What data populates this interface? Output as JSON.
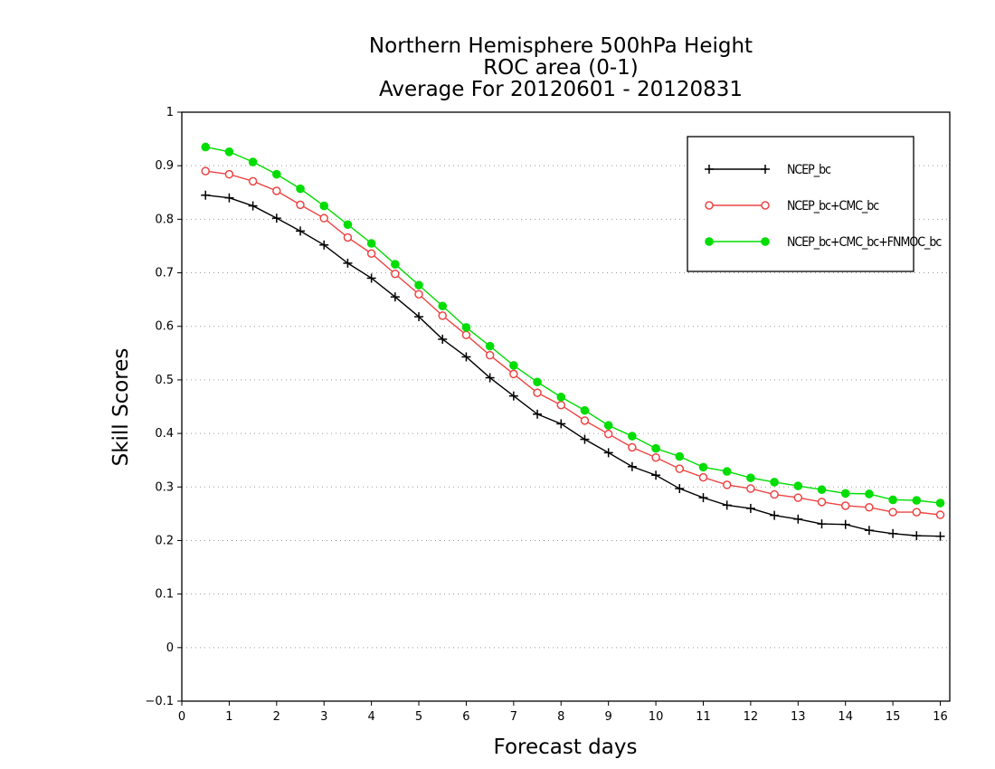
{
  "chart_data": {
    "type": "line",
    "title": [
      "Northern Hemisphere 500hPa Height",
      "ROC area (0-1)",
      "Average For 20120601 - 20120831"
    ],
    "xlabel": "Forecast days",
    "ylabel": "Skill Scores",
    "xlim": [
      0,
      16.2
    ],
    "ylim": [
      -0.1,
      1
    ],
    "xticks": [
      "0",
      "1",
      "2",
      "3",
      "4",
      "5",
      "6",
      "7",
      "8",
      "9",
      "10",
      "11",
      "12",
      "13",
      "14",
      "15",
      "16"
    ],
    "yticks": [
      "-0.1",
      "0",
      "0.1",
      "0.2",
      "0.3",
      "0.4",
      "0.5",
      "0.6",
      "0.7",
      "0.8",
      "0.9",
      "1"
    ],
    "grid": "horizontal dotted",
    "legend_position": "top-right",
    "x": [
      0.5,
      1,
      1.5,
      2,
      2.5,
      3,
      3.5,
      4,
      4.5,
      5,
      5.5,
      6,
      6.5,
      7,
      7.5,
      8,
      8.5,
      9,
      9.5,
      10,
      10.5,
      11,
      11.5,
      12,
      12.5,
      13,
      13.5,
      14,
      14.5,
      15,
      15.5,
      16
    ],
    "series": [
      {
        "name": "NCEP_bc",
        "color": "#000000",
        "marker": "plus",
        "values": [
          0.845,
          0.84,
          0.825,
          0.802,
          0.778,
          0.752,
          0.718,
          0.69,
          0.655,
          0.618,
          0.576,
          0.543,
          0.504,
          0.47,
          0.436,
          0.418,
          0.389,
          0.364,
          0.338,
          0.322,
          0.297,
          0.28,
          0.266,
          0.26,
          0.247,
          0.24,
          0.231,
          0.23,
          0.219,
          0.213,
          0.209,
          0.208
        ]
      },
      {
        "name": "NCEP_bc+CMC_bc",
        "color": "#ee4444",
        "marker": "open-circle",
        "values": [
          0.89,
          0.884,
          0.871,
          0.853,
          0.827,
          0.802,
          0.766,
          0.736,
          0.698,
          0.66,
          0.62,
          0.584,
          0.546,
          0.511,
          0.476,
          0.453,
          0.424,
          0.399,
          0.374,
          0.355,
          0.334,
          0.318,
          0.304,
          0.297,
          0.286,
          0.28,
          0.272,
          0.265,
          0.262,
          0.253,
          0.253,
          0.248
        ]
      },
      {
        "name": "NCEP_bc+CMC_bc+FNMOC_bc",
        "color": "#00dd00",
        "marker": "filled-circle",
        "values": [
          0.935,
          0.926,
          0.907,
          0.884,
          0.857,
          0.825,
          0.79,
          0.755,
          0.716,
          0.677,
          0.638,
          0.598,
          0.563,
          0.527,
          0.496,
          0.468,
          0.443,
          0.415,
          0.395,
          0.372,
          0.357,
          0.337,
          0.329,
          0.317,
          0.309,
          0.302,
          0.295,
          0.288,
          0.287,
          0.276,
          0.275,
          0.27
        ]
      }
    ]
  }
}
